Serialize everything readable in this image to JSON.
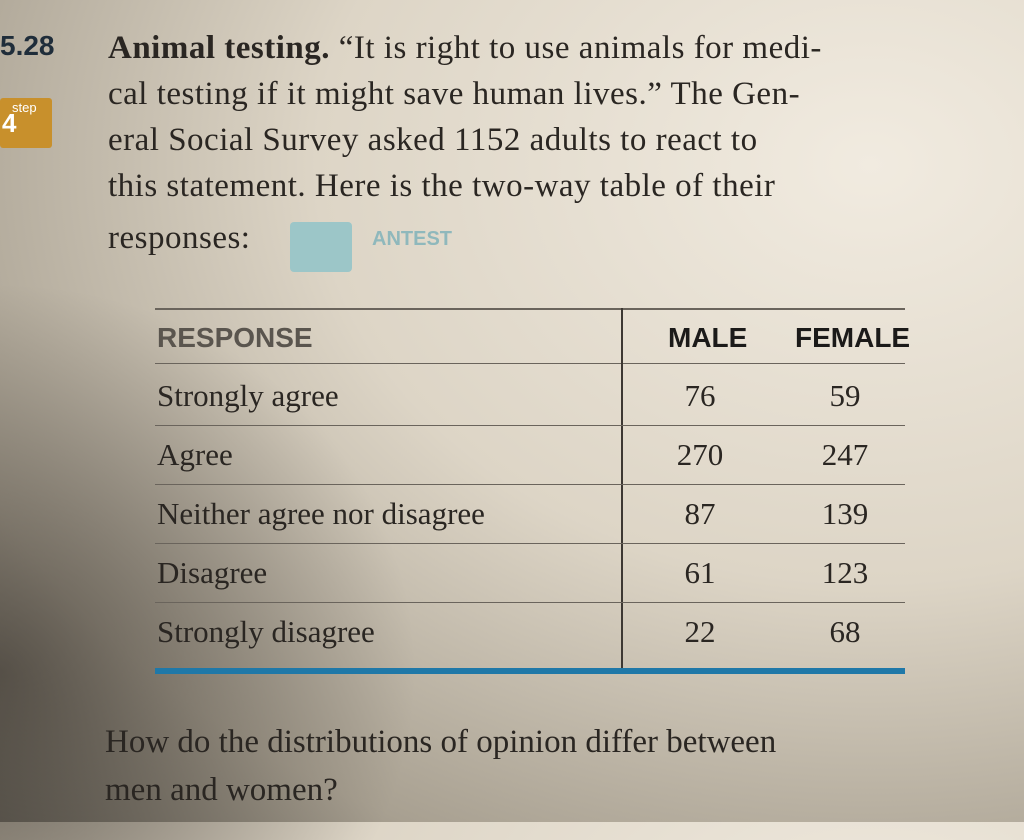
{
  "exercise": {
    "number": "5.28",
    "step_badge": {
      "word": "step",
      "digit": "4"
    },
    "title": "Animal testing.",
    "lines": [
      "“It is right to use animals for medi-",
      "cal testing if it might save human lives.” The Gen-",
      "eral Social Survey asked 1152 adults to react to",
      "this statement. Here is the two-way table of their",
      "responses:"
    ],
    "dataset": "ANTEST"
  },
  "table": {
    "header": [
      "RESPONSE",
      "MALE",
      "FEMALE"
    ],
    "rows": [
      [
        "Strongly agree",
        76,
        59
      ],
      [
        "Agree",
        270,
        247
      ],
      [
        "Neither agree nor disagree",
        87,
        139
      ],
      [
        "Disagree",
        61,
        123
      ],
      [
        "Strongly disagree",
        22,
        68
      ]
    ]
  },
  "question": [
    "How do the distributions of opinion differ between",
    "men and women?"
  ]
}
